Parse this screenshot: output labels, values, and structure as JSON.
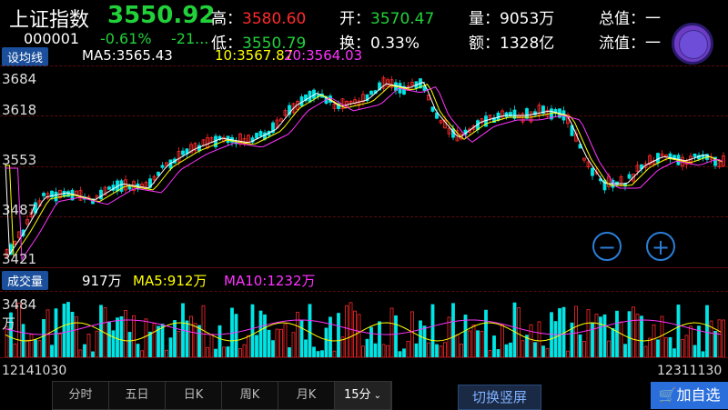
{
  "header": {
    "title": "上证指数",
    "price": "3550.92",
    "code": "000001",
    "change_pct": "-0.61%",
    "change_val": "-21...",
    "high_label": "高：",
    "high_value": "3580.60",
    "low_label": "低：",
    "low_value": "3550.79",
    "open_label": "开：",
    "open_value": "3570.47",
    "turnover_label": "换：",
    "turnover_value": "0.33%",
    "volume_label": "量：",
    "volume_value": "9053万",
    "amount_label": "额：",
    "amount_value": "1328亿",
    "total_cap_label": "总值：",
    "total_cap_value": "一",
    "float_cap_label": "流值：",
    "float_cap_value": "一"
  },
  "ma_bar": {
    "button_label": "设均线",
    "ma5": "MA5:3565.43",
    "ma10": "10:3567.87",
    "ma20": "20:3564.03"
  },
  "price_axis": [
    "3684",
    "3618",
    "3553",
    "3487",
    "3421"
  ],
  "volume_bar": {
    "button_label": "成交量",
    "vol": "917万",
    "ma5": "MA5:912万",
    "ma10": "MA10:1232万"
  },
  "volume_axis": {
    "top": "3484",
    "unit": "万"
  },
  "time_axis": {
    "start": "12141030",
    "end": "12311130"
  },
  "tabs": [
    "分时",
    "五日",
    "日K",
    "周K",
    "月K",
    "15分"
  ],
  "active_tab": 5,
  "switch_button": "切换竖屏",
  "fav_button": "加自选",
  "colors": {
    "up": "#ff2a2a",
    "down": "#00e5e5",
    "ma5": "#ffffff",
    "ma10": "#ffff00",
    "ma20": "#ff33ff"
  }
}
